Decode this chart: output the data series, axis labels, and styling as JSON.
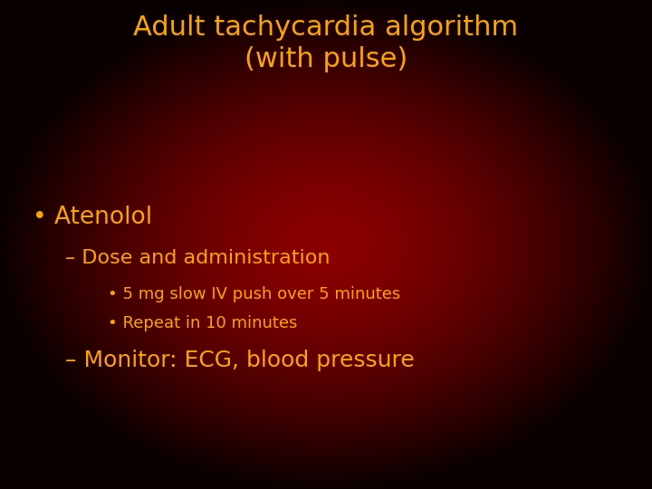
{
  "title_line1": "Adult tachycardia algorithm",
  "title_line2": "(with pulse)",
  "title_color": "#FFA500",
  "title_fontsize": 22,
  "bullet1_text": "• Atenolol",
  "bullet1_color": "#FFA500",
  "bullet1_fontsize": 19,
  "sub1_text": "– Dose and administration",
  "sub1_color": "#FFA500",
  "sub1_fontsize": 16,
  "sub_bullet1_text": "• 5 mg slow IV push over 5 minutes",
  "sub_bullet2_text": "• Repeat in 10 minutes",
  "sub_bullet_color": "#FFA500",
  "sub_bullet_fontsize": 13,
  "sub2_text": "– Monitor: ECG, blood pressure",
  "sub2_color": "#FFA500",
  "sub2_fontsize": 18,
  "fig_width": 7.2,
  "fig_height": 5.4,
  "dpi": 100,
  "bg_inner_r": 0.545,
  "bg_inner_g": 0.0,
  "bg_inner_b": 0.0,
  "bg_outer_r": 0.04,
  "bg_outer_g": 0.0,
  "bg_outer_b": 0.0,
  "gradient_power": 1.5
}
